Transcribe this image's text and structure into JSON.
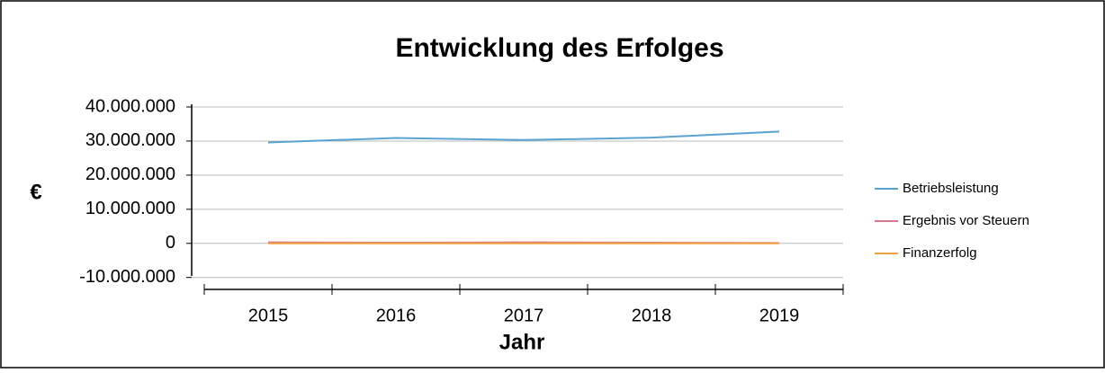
{
  "chart_data": {
    "type": "line",
    "title": "Entwicklung des Erfolges",
    "x_label": "Jahr",
    "y_label": "€",
    "categories": [
      "2015",
      "2016",
      "2017",
      "2018",
      "2019"
    ],
    "series": [
      {
        "name": "Betriebsleistung",
        "color": "#5ba3cf",
        "values": [
          29600000,
          30900000,
          30300000,
          31000000,
          32800000
        ]
      },
      {
        "name": "Ergebnis vor Steuern",
        "color": "#d9768a",
        "values": [
          300000,
          200000,
          300000,
          200000,
          100000
        ]
      },
      {
        "name": "Finanzerfolg",
        "color": "#f0a040",
        "values": [
          0,
          0,
          0,
          0,
          0
        ]
      }
    ],
    "ylim": [
      -13500000,
      40000000
    ],
    "yticks": [
      {
        "value": -10000000,
        "label": "-10.000.000"
      },
      0,
      {
        "value": 10000000,
        "label": "10.000.000"
      },
      {
        "value": 20000000,
        "label": "20.000.000"
      },
      {
        "value": 30000000,
        "label": "30.000.000"
      },
      {
        "value": 40000000,
        "label": "40.000.000"
      }
    ],
    "grid": true,
    "legend": "right"
  }
}
